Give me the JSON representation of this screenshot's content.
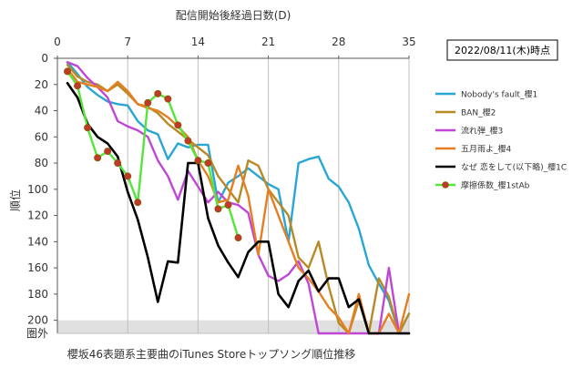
{
  "chart_data": {
    "type": "line",
    "title": "櫻坂46表題系主要曲のiTunes Storeトップソング順位推移",
    "xlabel": "配信開始後経過日数(D)",
    "ylabel": "順位",
    "date_box": "2022/08/11(木)時点",
    "out_label": "圏外",
    "x_ticks": [
      0,
      7,
      14,
      21,
      28,
      35
    ],
    "y_ticks": [
      0,
      20,
      40,
      60,
      80,
      100,
      120,
      140,
      160,
      180,
      200
    ],
    "xlim": [
      0,
      35
    ],
    "ylim": [
      0,
      210
    ],
    "y_inverted": true,
    "out_of_range_value": 210,
    "grid": "vertical",
    "legend_position": "right",
    "series": [
      {
        "name": "Nobody's fault_櫻1",
        "color": "#2aa6d6",
        "marker": false,
        "x": [
          1,
          2,
          3,
          4,
          5,
          6,
          7,
          8,
          9,
          10,
          11,
          12,
          13,
          14,
          15,
          16,
          17,
          18,
          19,
          20,
          21,
          22,
          23,
          24,
          25,
          26,
          27,
          28,
          29,
          30,
          31,
          32,
          33,
          34,
          35
        ],
        "y": [
          3,
          12,
          22,
          28,
          33,
          35,
          36,
          48,
          55,
          58,
          77,
          65,
          68,
          66,
          66,
          110,
          95,
          90,
          84,
          90,
          96,
          100,
          140,
          80,
          77,
          75,
          92,
          98,
          110,
          130,
          158,
          172,
          185,
          210,
          195
        ]
      },
      {
        "name": "BAN_櫻2",
        "color": "#b88a25",
        "marker": false,
        "x": [
          1,
          2,
          3,
          4,
          5,
          6,
          7,
          8,
          9,
          10,
          11,
          12,
          13,
          14,
          15,
          16,
          17,
          18,
          19,
          20,
          21,
          22,
          23,
          24,
          25,
          26,
          27,
          28,
          29,
          30,
          31,
          32,
          33,
          34,
          35
        ],
        "y": [
          5,
          14,
          18,
          20,
          25,
          20,
          27,
          35,
          37,
          42,
          50,
          56,
          62,
          68,
          74,
          90,
          100,
          110,
          78,
          82,
          100,
          110,
          120,
          152,
          160,
          140,
          174,
          202,
          210,
          185,
          210,
          168,
          182,
          210,
          195
        ]
      },
      {
        "name": "流れ弾_櫻3",
        "color": "#c047d6",
        "marker": false,
        "x": [
          1,
          2,
          3,
          4,
          5,
          6,
          7,
          8,
          9,
          10,
          11,
          12,
          13,
          14,
          15,
          16,
          17,
          18,
          19,
          20,
          21,
          22,
          23,
          24,
          25,
          26,
          27,
          28,
          29,
          30,
          31,
          32,
          33,
          34,
          35
        ],
        "y": [
          3,
          6,
          15,
          22,
          30,
          48,
          52,
          55,
          60,
          78,
          90,
          108,
          86,
          98,
          110,
          102,
          110,
          112,
          118,
          150,
          166,
          170,
          165,
          155,
          172,
          210,
          210,
          210,
          210,
          210,
          210,
          210,
          160,
          210,
          210
        ]
      },
      {
        "name": "五月雨よ_櫻4",
        "color": "#e67e22",
        "marker": false,
        "x": [
          1,
          2,
          3,
          4,
          5,
          6,
          7,
          8,
          9,
          10,
          11,
          12,
          13,
          14,
          15,
          16,
          17,
          18,
          19,
          20,
          21,
          22,
          23,
          24,
          25,
          26,
          27,
          28,
          29,
          30,
          31,
          32,
          33,
          34,
          35
        ],
        "y": [
          8,
          18,
          20,
          22,
          25,
          18,
          25,
          35,
          38,
          40,
          45,
          52,
          60,
          78,
          90,
          110,
          108,
          82,
          105,
          150,
          100,
          120,
          140,
          160,
          168,
          178,
          190,
          198,
          210,
          180,
          210,
          210,
          195,
          210,
          180
        ]
      },
      {
        "name": "なぜ 恋をして(以下略)_櫻1C",
        "color": "#000000",
        "marker": false,
        "x": [
          1,
          2,
          3,
          4,
          5,
          6,
          7,
          8,
          9,
          10,
          11,
          12,
          13,
          14,
          15,
          16,
          17,
          18,
          19,
          20,
          21,
          22,
          23,
          24,
          25,
          26,
          27,
          28,
          29,
          30,
          31,
          32,
          33,
          34,
          35
        ],
        "y": [
          19,
          30,
          50,
          60,
          65,
          75,
          102,
          123,
          152,
          186,
          155,
          156,
          80,
          80,
          122,
          143,
          156,
          167,
          148,
          140,
          140,
          180,
          190,
          170,
          162,
          178,
          168,
          168,
          190,
          184,
          210,
          210,
          210,
          210,
          210
        ]
      },
      {
        "name": "摩擦係数_櫻1stAb",
        "color": "#55e63a",
        "marker": true,
        "marker_color": "#c0392b",
        "x": [
          1,
          2,
          3,
          4,
          5,
          6,
          7,
          8,
          9,
          10,
          11,
          12,
          13,
          14,
          15,
          16,
          17,
          18
        ],
        "y": [
          10,
          21,
          53,
          76,
          71,
          80,
          90,
          110,
          34,
          27,
          31,
          51,
          63,
          78,
          80,
          115,
          112,
          137
        ]
      }
    ]
  }
}
